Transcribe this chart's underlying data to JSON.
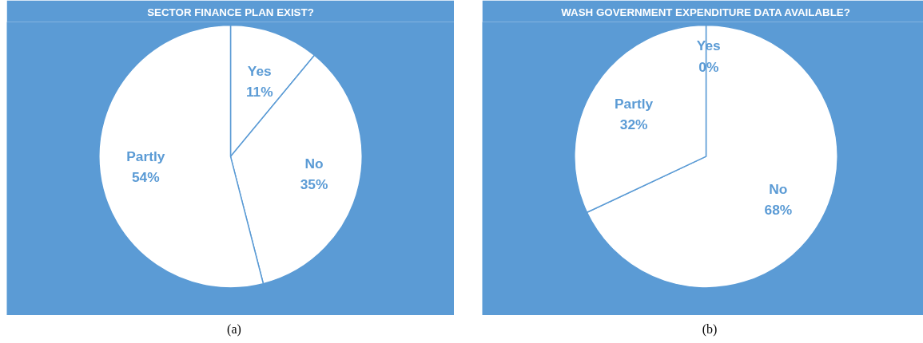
{
  "chart_data": [
    {
      "type": "pie",
      "title": "SECTOR FINANCE PLAN EXIST?",
      "categories": [
        "Yes",
        "No",
        "Partly"
      ],
      "values": [
        11,
        35,
        54
      ],
      "colors": [
        "#ffffff",
        "#ffffff",
        "#ffffff"
      ],
      "value_labels": [
        "11%",
        "35%",
        "54%"
      ],
      "annotations": [
        "(a)"
      ]
    },
    {
      "type": "pie",
      "title": "WASH GOVERNMENT EXPENDITURE DATA AVAILABLE?",
      "categories": [
        "Yes",
        "No",
        "Partly"
      ],
      "values": [
        0,
        68,
        32
      ],
      "colors": [
        "#ffffff",
        "#ffffff",
        "#ffffff"
      ],
      "value_labels": [
        "0%",
        "68%",
        "32%"
      ],
      "annotations": [
        "(b)"
      ]
    }
  ]
}
